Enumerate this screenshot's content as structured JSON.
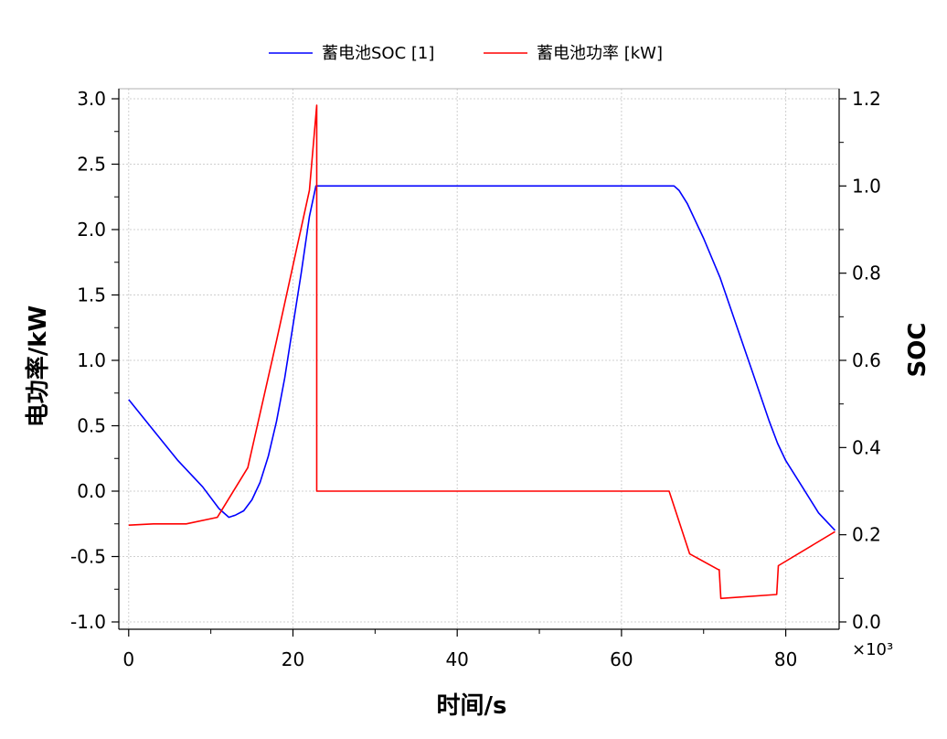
{
  "chart_data": {
    "type": "line",
    "xlabel": "时间/s",
    "ylabel": "电功率/kW",
    "y2label": "SOC",
    "x_multiplier_label": "×10³",
    "xlim": [
      -1.2,
      86.5
    ],
    "ylim": [
      -1.0,
      3.0
    ],
    "y2lim": [
      0.0,
      1.2
    ],
    "x_ticks": [
      0,
      20,
      40,
      60,
      80
    ],
    "y_ticks": [
      -1.0,
      -0.5,
      0.0,
      0.5,
      1.0,
      1.5,
      2.0,
      2.5,
      3.0
    ],
    "y2_ticks": [
      0.0,
      0.2,
      0.4,
      0.6,
      0.8,
      1.0,
      1.2
    ],
    "x_tick_labels": [
      "0",
      "20",
      "40",
      "60",
      "80"
    ],
    "y_tick_labels": [
      "-1.0",
      "-0.5",
      "0.0",
      "0.5",
      "1.0",
      "1.5",
      "2.0",
      "2.5",
      "3.0"
    ],
    "y2_tick_labels": [
      "0.0",
      "0.2",
      "0.4",
      "0.6",
      "0.8",
      "1.0",
      "1.2"
    ],
    "grid": true,
    "legend_position": "top-center",
    "series": [
      {
        "name": "蓄电池SOC [1]",
        "axis": "right",
        "color": "#0000ff",
        "x": [
          0,
          3,
          6,
          9,
          11,
          12.2,
          13,
          14,
          15,
          16,
          17,
          18,
          19,
          20,
          21,
          22,
          22.8,
          22.9,
          30,
          40,
          50,
          60,
          65,
          66.4,
          67,
          68,
          70,
          72,
          74,
          76,
          78,
          79,
          80,
          82,
          84,
          86
        ],
        "y": [
          0.51,
          0.44,
          0.37,
          0.31,
          0.26,
          0.24,
          0.245,
          0.255,
          0.28,
          0.32,
          0.38,
          0.46,
          0.56,
          0.68,
          0.8,
          0.93,
          1.0,
          1.0,
          1.0,
          1.0,
          1.0,
          1.0,
          1.0,
          1.0,
          0.99,
          0.96,
          0.88,
          0.79,
          0.68,
          0.57,
          0.46,
          0.41,
          0.37,
          0.31,
          0.25,
          0.21
        ]
      },
      {
        "name": "蓄电池功率 [kW]",
        "axis": "left",
        "color": "#ff0000",
        "x": [
          0,
          3,
          7,
          10.8,
          14.5,
          18,
          22,
          22.9,
          22.9,
          30,
          40,
          50,
          60,
          65.8,
          68.3,
          71.8,
          71.9,
          72.1,
          78.9,
          79.1,
          86
        ],
        "y": [
          -0.26,
          -0.25,
          -0.25,
          -0.2,
          0.18,
          1.15,
          2.3,
          2.95,
          0.0,
          0.0,
          0.0,
          0.0,
          0.0,
          0.0,
          -0.48,
          -0.6,
          -0.6,
          -0.82,
          -0.79,
          -0.57,
          -0.31
        ]
      }
    ]
  }
}
